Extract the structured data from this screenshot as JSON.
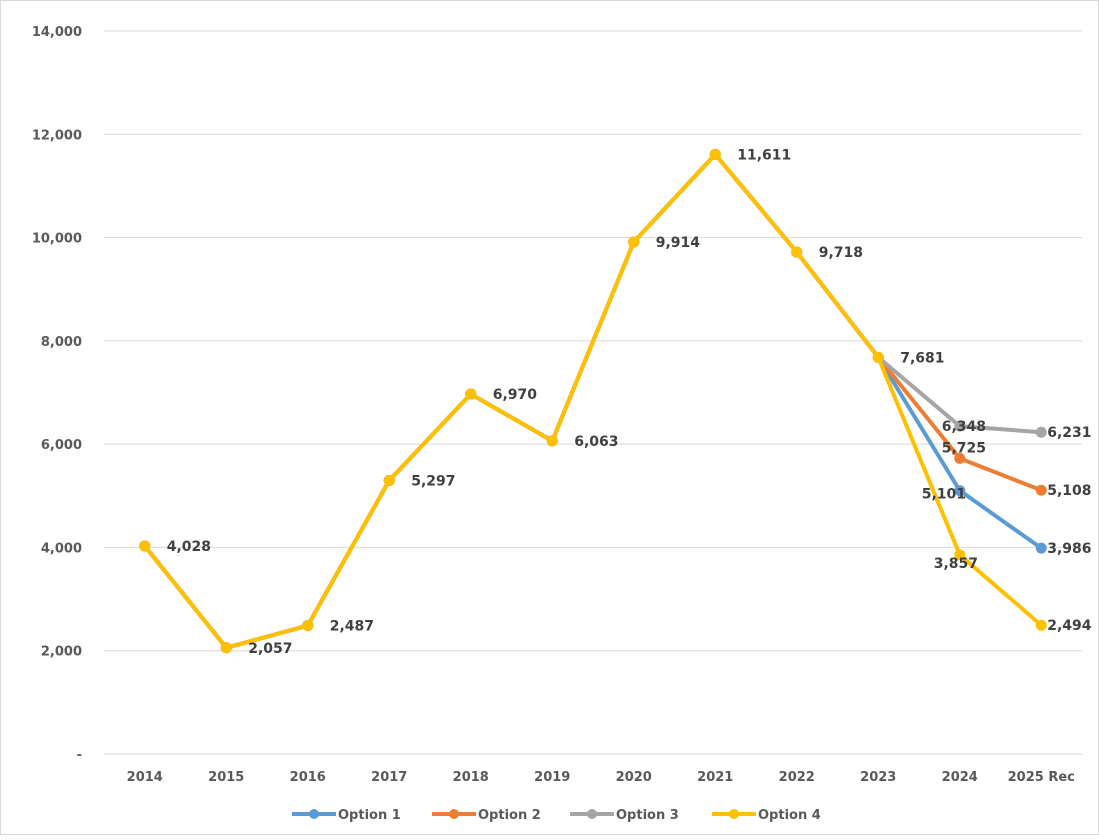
{
  "chart_data": {
    "type": "line",
    "title": "",
    "xlabel": "",
    "ylabel": "",
    "categories": [
      "2014",
      "2015",
      "2016",
      "2017",
      "2018",
      "2019",
      "2020",
      "2021",
      "2022",
      "2023",
      "2024",
      "2025 Rec"
    ],
    "y_ticks": [
      {
        "value": 0,
        "label": "-"
      },
      {
        "value": 2000,
        "label": "2,000"
      },
      {
        "value": 4000,
        "label": "4,000"
      },
      {
        "value": 6000,
        "label": "6,000"
      },
      {
        "value": 8000,
        "label": "8,000"
      },
      {
        "value": 10000,
        "label": "10,000"
      },
      {
        "value": 12000,
        "label": "12,000"
      },
      {
        "value": 14000,
        "label": "14,000"
      }
    ],
    "ylim": [
      0,
      14000
    ],
    "grid": true,
    "legend_position": "bottom",
    "series": [
      {
        "name": "Option 1",
        "color": "#5B9BD5",
        "values": [
          4028,
          2057,
          2487,
          5297,
          6970,
          6063,
          9914,
          11611,
          9718,
          7681,
          5101,
          3986
        ],
        "labels": [
          null,
          null,
          null,
          null,
          null,
          null,
          null,
          null,
          null,
          null,
          "5,101",
          "3,986"
        ]
      },
      {
        "name": "Option 2",
        "color": "#ED7D31",
        "values": [
          4028,
          2057,
          2487,
          5297,
          6970,
          6063,
          9914,
          11611,
          9718,
          7681,
          5725,
          5108
        ],
        "labels": [
          null,
          null,
          null,
          null,
          null,
          null,
          null,
          null,
          null,
          null,
          "5,725",
          "5,108"
        ]
      },
      {
        "name": "Option 3",
        "color": "#A5A5A5",
        "values": [
          4028,
          2057,
          2487,
          5297,
          6970,
          6063,
          9914,
          11611,
          9718,
          7681,
          6348,
          6231
        ],
        "labels": [
          null,
          null,
          null,
          null,
          null,
          null,
          null,
          null,
          null,
          null,
          "6,348",
          "6,231"
        ]
      },
      {
        "name": "Option 4",
        "color": "#FFC000",
        "values": [
          4028,
          2057,
          2487,
          5297,
          6970,
          6063,
          9914,
          11611,
          9718,
          7681,
          3857,
          2494
        ],
        "labels": [
          "4,028",
          "2,057",
          "2,487",
          "5,297",
          "6,970",
          "6,063",
          "9,914",
          "11,611",
          "9,718",
          "7,681",
          "3,857",
          "2,494"
        ]
      }
    ]
  }
}
